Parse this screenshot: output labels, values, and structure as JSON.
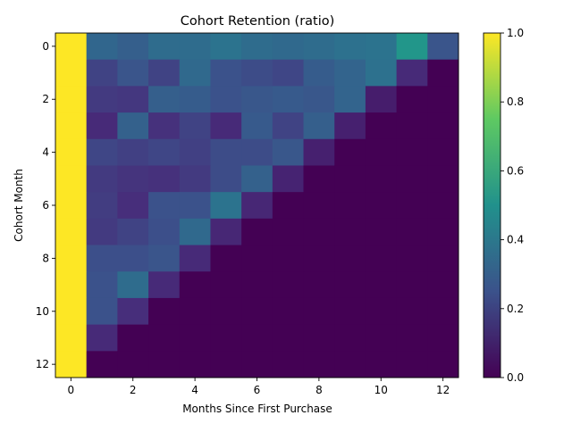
{
  "chart_data": {
    "type": "heatmap",
    "title": "Cohort Retention (ratio)",
    "xlabel": "Months Since First Purchase",
    "ylabel": "Cohort Month",
    "x_categories": [
      0,
      1,
      2,
      3,
      4,
      5,
      6,
      7,
      8,
      9,
      10,
      11,
      12
    ],
    "y_categories": [
      0,
      1,
      2,
      3,
      4,
      5,
      6,
      7,
      8,
      9,
      10,
      11,
      12
    ],
    "x_ticks": [
      "0",
      "2",
      "4",
      "6",
      "8",
      "10",
      "12"
    ],
    "y_ticks": [
      "0",
      "2",
      "4",
      "6",
      "8",
      "10",
      "12"
    ],
    "colormap": "viridis",
    "value_range": [
      0,
      1
    ],
    "colorbar_ticks": [
      "0.0",
      "0.2",
      "0.4",
      "0.6",
      "0.8",
      "1.0"
    ],
    "values": [
      [
        1.0,
        0.33,
        0.3,
        0.35,
        0.35,
        0.38,
        0.35,
        0.34,
        0.35,
        0.37,
        0.38,
        0.52,
        0.26
      ],
      [
        1.0,
        0.2,
        0.26,
        0.2,
        0.34,
        0.25,
        0.23,
        0.21,
        0.29,
        0.32,
        0.37,
        0.12,
        0.0
      ],
      [
        1.0,
        0.17,
        0.16,
        0.3,
        0.29,
        0.25,
        0.27,
        0.28,
        0.27,
        0.32,
        0.08,
        0.0,
        0.0
      ],
      [
        1.0,
        0.12,
        0.31,
        0.14,
        0.2,
        0.12,
        0.28,
        0.2,
        0.3,
        0.09,
        0.0,
        0.0,
        0.0
      ],
      [
        1.0,
        0.21,
        0.19,
        0.21,
        0.19,
        0.23,
        0.23,
        0.27,
        0.09,
        0.0,
        0.0,
        0.0,
        0.0
      ],
      [
        1.0,
        0.17,
        0.15,
        0.14,
        0.17,
        0.23,
        0.31,
        0.1,
        0.0,
        0.0,
        0.0,
        0.0,
        0.0
      ],
      [
        1.0,
        0.18,
        0.13,
        0.25,
        0.25,
        0.38,
        0.11,
        0.0,
        0.0,
        0.0,
        0.0,
        0.0,
        0.0
      ],
      [
        1.0,
        0.17,
        0.2,
        0.24,
        0.34,
        0.11,
        0.0,
        0.0,
        0.0,
        0.0,
        0.0,
        0.0,
        0.0
      ],
      [
        1.0,
        0.24,
        0.24,
        0.26,
        0.12,
        0.0,
        0.0,
        0.0,
        0.0,
        0.0,
        0.0,
        0.0,
        0.0
      ],
      [
        1.0,
        0.25,
        0.35,
        0.12,
        0.0,
        0.0,
        0.0,
        0.0,
        0.0,
        0.0,
        0.0,
        0.0,
        0.0
      ],
      [
        1.0,
        0.25,
        0.13,
        0.0,
        0.0,
        0.0,
        0.0,
        0.0,
        0.0,
        0.0,
        0.0,
        0.0,
        0.0
      ],
      [
        1.0,
        0.12,
        0.0,
        0.0,
        0.0,
        0.0,
        0.0,
        0.0,
        0.0,
        0.0,
        0.0,
        0.0,
        0.0
      ],
      [
        1.0,
        0.0,
        0.0,
        0.0,
        0.0,
        0.0,
        0.0,
        0.0,
        0.0,
        0.0,
        0.0,
        0.0,
        0.0
      ]
    ]
  }
}
